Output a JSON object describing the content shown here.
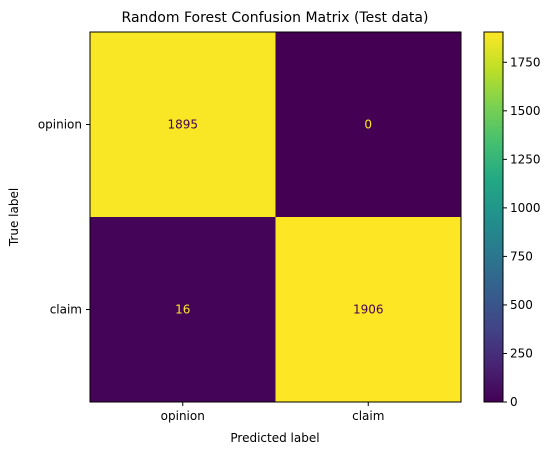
{
  "chart_data": {
    "type": "heatmap",
    "title": "Random Forest Confusion Matrix (Test data)",
    "xlabel": "Predicted label",
    "ylabel": "True label",
    "x_categories": [
      "opinion",
      "claim"
    ],
    "y_categories": [
      "opinion",
      "claim"
    ],
    "values": [
      [
        1895,
        0
      ],
      [
        16,
        1906
      ]
    ],
    "colormap": "viridis",
    "colorbar": {
      "min": 0,
      "max": 1906,
      "ticks": [
        0,
        250,
        500,
        750,
        1000,
        1250,
        1500,
        1750
      ],
      "tick_labels": [
        "0",
        "250",
        "500",
        "750",
        "1000",
        "1250",
        "1500",
        "1750"
      ]
    },
    "grid": false
  }
}
